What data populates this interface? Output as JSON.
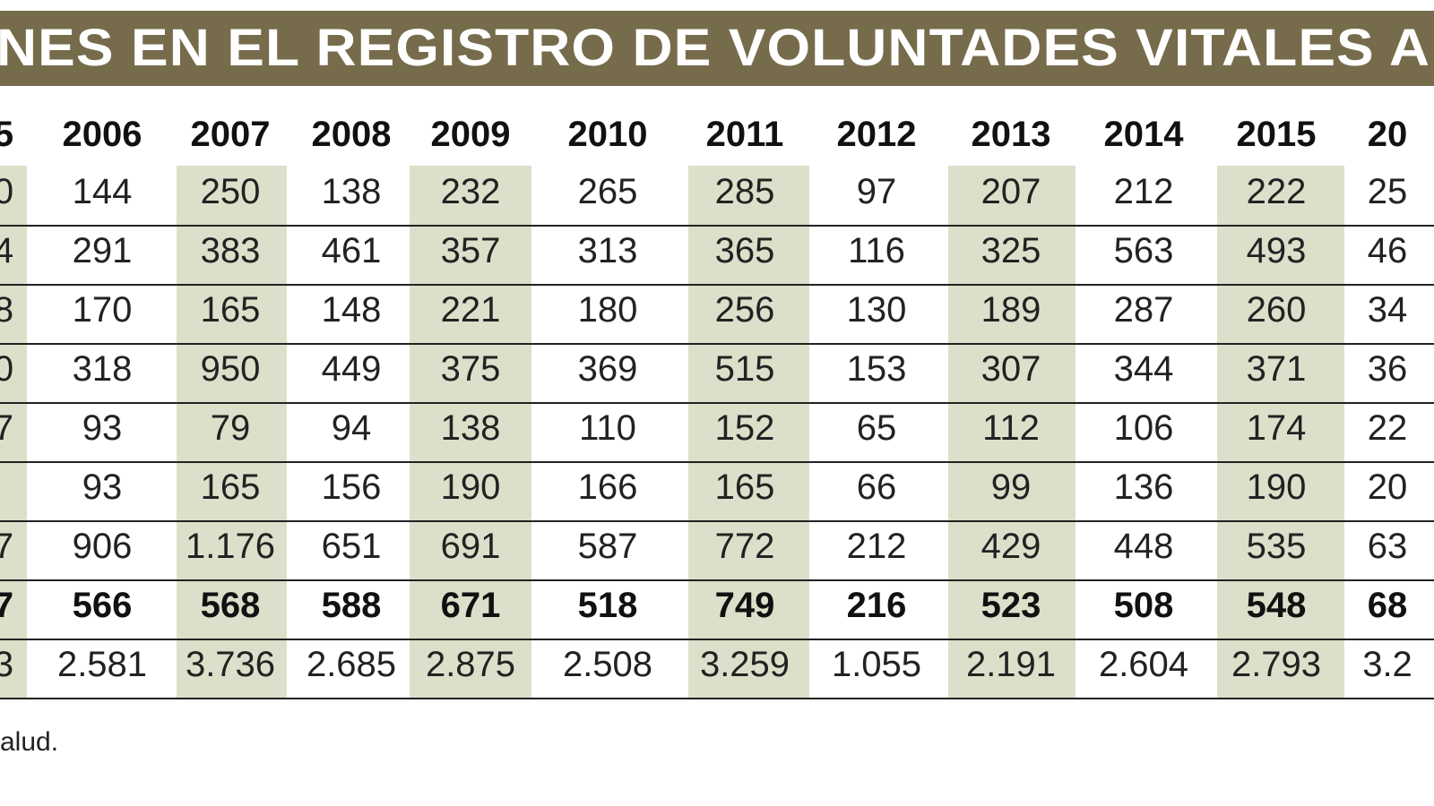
{
  "title": "NES EN EL REGISTRO DE VOLUNTADES VITALES A",
  "table": {
    "header": {
      "left": "5",
      "years": [
        "2006",
        "2007",
        "2008",
        "2009",
        "2010",
        "2011",
        "2012",
        "2013",
        "2014",
        "2015"
      ],
      "right": "20"
    },
    "rows": [
      {
        "left": "0",
        "values": [
          "144",
          "250",
          "138",
          "232",
          "265",
          "285",
          "97",
          "207",
          "212",
          "222"
        ],
        "right": "25"
      },
      {
        "left": "4",
        "values": [
          "291",
          "383",
          "461",
          "357",
          "313",
          "365",
          "116",
          "325",
          "563",
          "493"
        ],
        "right": "46"
      },
      {
        "left": "8",
        "values": [
          "170",
          "165",
          "148",
          "221",
          "180",
          "256",
          "130",
          "189",
          "287",
          "260"
        ],
        "right": "34"
      },
      {
        "left": "0",
        "values": [
          "318",
          "950",
          "449",
          "375",
          "369",
          "515",
          "153",
          "307",
          "344",
          "371"
        ],
        "right": "36"
      },
      {
        "left": "7",
        "values": [
          "93",
          "79",
          "94",
          "138",
          "110",
          "152",
          "65",
          "112",
          "106",
          "174"
        ],
        "right": "22"
      },
      {
        "left": null,
        "values": [
          "93",
          "165",
          "156",
          "190",
          "166",
          "165",
          "66",
          "99",
          "136",
          "190"
        ],
        "right": "20"
      },
      {
        "left": "7",
        "values": [
          "906",
          "1.176",
          "651",
          "691",
          "587",
          "772",
          "212",
          "429",
          "448",
          "535"
        ],
        "right": "63"
      },
      {
        "left": "7",
        "values": [
          "566",
          "568",
          "588",
          "671",
          "518",
          "749",
          "216",
          "523",
          "508",
          "548"
        ],
        "right": "68"
      },
      {
        "left": "3",
        "values": [
          "2.581",
          "3.736",
          "2.685",
          "2.875",
          "2.508",
          "3.259",
          "1.055",
          "2.191",
          "2.604",
          "2.793"
        ],
        "right": "3.2"
      }
    ]
  },
  "source": "alud."
}
